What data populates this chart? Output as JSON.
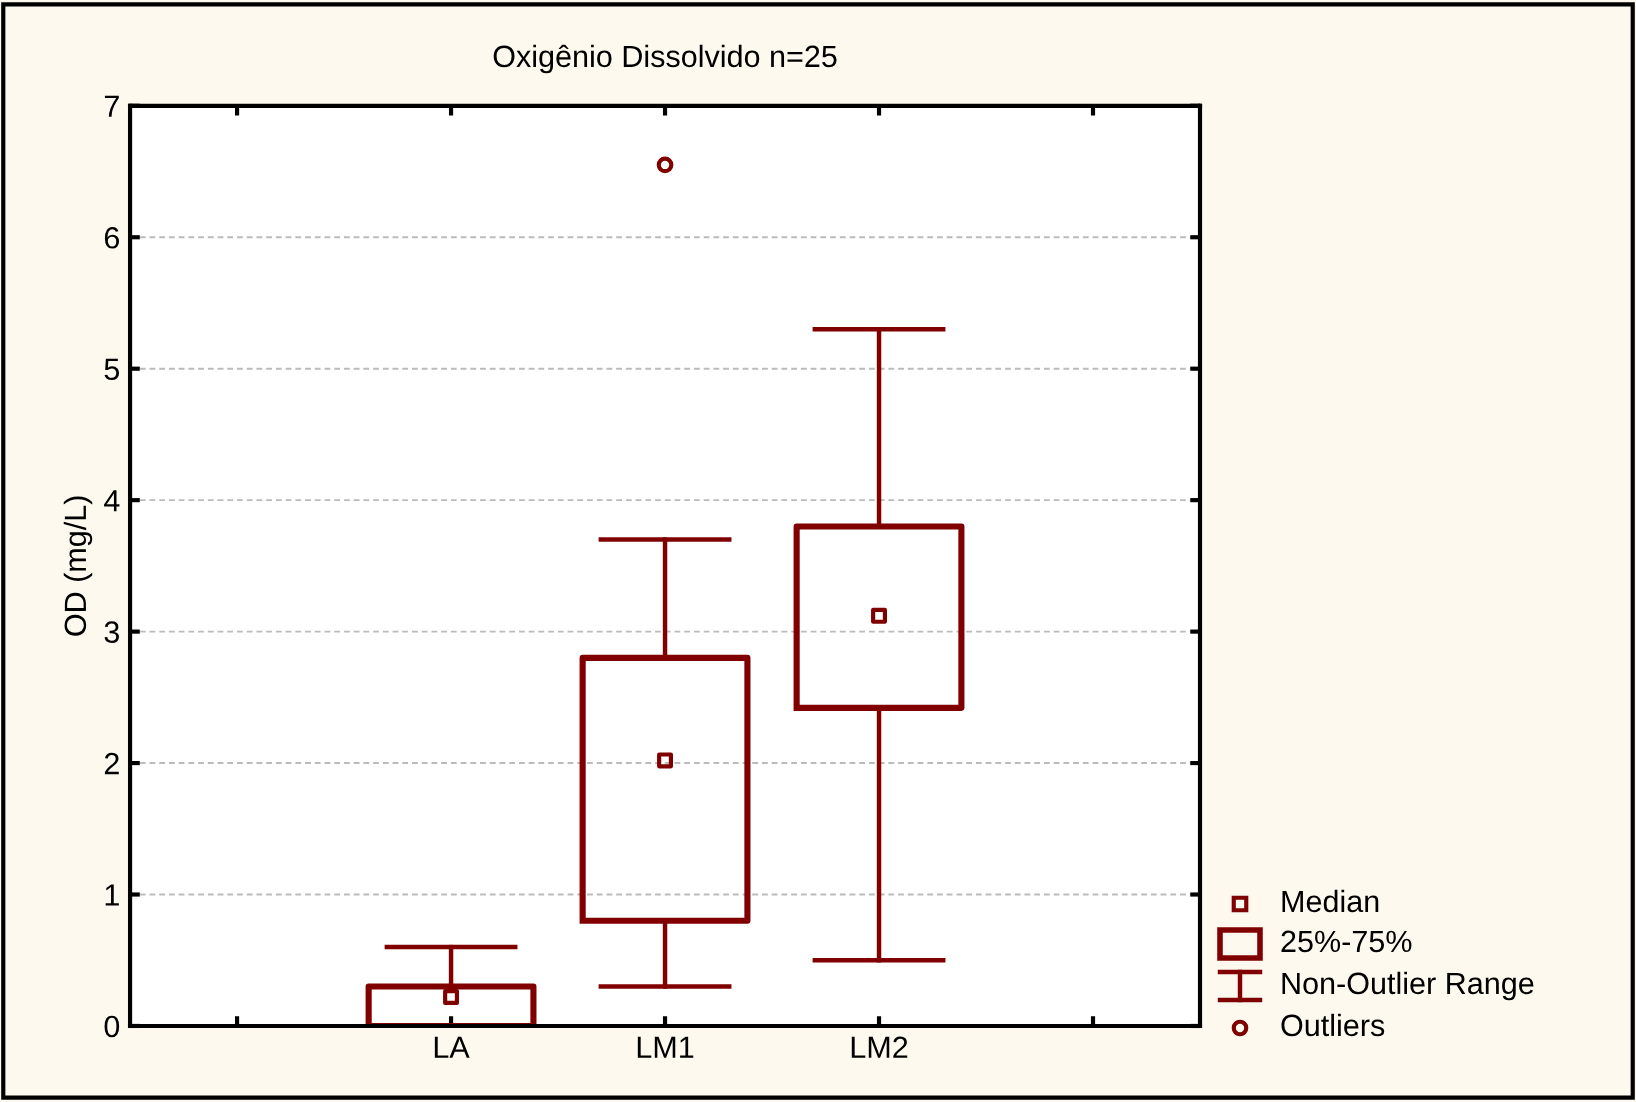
{
  "chart_data": {
    "type": "box",
    "title": "Oxigênio Dissolvido n=25",
    "ylabel": "OD (mg/L)",
    "categories": [
      null,
      "LA",
      "LM1",
      "LM2",
      null
    ],
    "color": "#800000",
    "boxes": [
      null,
      {
        "low": 0,
        "q1": 0,
        "median": 0.22,
        "q3": 0.3,
        "high": 0.6
      },
      {
        "low": 0.3,
        "q1": 0.8,
        "median": 2.02,
        "q3": 2.8,
        "high": 3.7,
        "outliers": [
          6.55
        ]
      },
      {
        "low": 0.5,
        "q1": 2.42,
        "median": 3.12,
        "q3": 3.8,
        "high": 5.3
      },
      null
    ],
    "ylim": [
      0,
      7
    ],
    "yticks": [
      0,
      1,
      2,
      3,
      4,
      5,
      6,
      7
    ],
    "grid": "y",
    "marker": "square",
    "annotations": [
      "Median",
      "25%-75%",
      "Non-Outlier Range",
      "Outliers"
    ]
  }
}
